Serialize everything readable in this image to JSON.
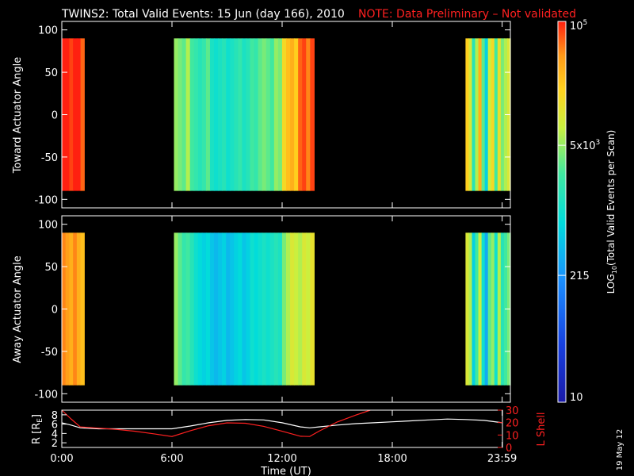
{
  "header": {
    "title": "TWINS2: Total Valid Events: 15 Jun (day 166), 2010",
    "note": "NOTE: Data Preliminary – Not validated"
  },
  "colors": {
    "background": "#000000",
    "axes": "#ffffff",
    "note": "#ff2020",
    "r_line": "#ffffff",
    "lshell_line": "#ff2020"
  },
  "colorbar": {
    "label": "LOG10(Total Valid Events per Scan)",
    "label_main": "LOG",
    "label_sub": "10",
    "label_rest": "(Total Valid Events per Scan)",
    "scale": "log",
    "min": 10,
    "max": 100000,
    "ticks": [
      {
        "value": 10,
        "label": "10"
      },
      {
        "value": 215,
        "label": "215"
      },
      {
        "value": 5000,
        "label": "5x10",
        "exp": "3"
      },
      {
        "value": 100000,
        "label": "10",
        "exp": "5"
      }
    ]
  },
  "footer": {
    "xlabel": "Time (UT)",
    "date_stamp": "19 May 12"
  },
  "chart_data": [
    {
      "type": "heatmap",
      "name": "toward",
      "ylabel": "Toward Actuator Angle",
      "xlim": [
        0,
        24
      ],
      "ylim": [
        -110,
        110
      ],
      "yticks": [
        100,
        50,
        0,
        -50,
        -100
      ],
      "angle_range": [
        -90,
        90
      ],
      "segments": [
        {
          "start": 0.0,
          "end": 1.2,
          "profile": [
            5.0,
            5.1,
            4.9,
            5.2,
            5.0,
            4.8
          ]
        },
        {
          "start": 6.0,
          "end": 13.5,
          "profile": [
            3.7,
            3.6,
            3.5,
            3.8,
            3.4,
            3.3,
            3.2,
            3.3,
            3.5,
            3.1,
            3.0,
            3.1,
            3.2,
            3.0,
            3.1,
            3.2,
            3.3,
            3.1,
            3.2,
            3.4,
            3.3,
            3.5,
            3.6,
            3.5,
            3.4,
            3.7,
            3.6,
            4.2,
            4.4,
            4.5,
            4.3,
            4.8,
            4.9,
            4.7,
            4.9
          ]
        },
        {
          "start": 21.6,
          "end": 24.0,
          "profile": [
            4.3,
            4.0,
            3.2,
            3.8,
            4.5,
            3.5,
            2.8,
            3.9,
            4.2,
            3.4,
            4.1,
            3.6,
            3.8,
            4.0
          ]
        }
      ]
    },
    {
      "type": "heatmap",
      "name": "away",
      "ylabel": "Away Actuator Angle",
      "xlim": [
        0,
        24
      ],
      "ylim": [
        -110,
        110
      ],
      "yticks": [
        100,
        50,
        0,
        -50,
        -100
      ],
      "angle_range": [
        -90,
        90
      ],
      "segments": [
        {
          "start": 0.0,
          "end": 1.2,
          "profile": [
            4.7,
            4.6,
            4.5,
            4.7,
            4.5,
            4.4
          ]
        },
        {
          "start": 6.0,
          "end": 13.5,
          "profile": [
            3.7,
            3.5,
            3.3,
            3.4,
            3.2,
            3.0,
            2.9,
            2.8,
            2.9,
            2.7,
            2.6,
            2.7,
            2.8,
            2.6,
            2.7,
            2.8,
            2.9,
            2.7,
            2.8,
            3.0,
            2.9,
            3.0,
            3.1,
            3.0,
            3.1,
            3.2,
            3.1,
            3.6,
            3.8,
            4.0,
            3.9,
            3.8,
            4.0,
            3.9,
            4.1
          ]
        },
        {
          "start": 21.6,
          "end": 24.0,
          "profile": [
            4.0,
            3.8,
            2.8,
            3.4,
            3.9,
            3.0,
            2.5,
            3.5,
            3.7,
            3.0,
            3.8,
            3.2,
            3.4,
            3.6
          ]
        }
      ]
    },
    {
      "type": "line",
      "name": "orbit",
      "xlabel": "Time (UT)",
      "xlim": [
        0,
        24
      ],
      "xticks": [
        0,
        6,
        12,
        18,
        23.983
      ],
      "xtick_labels": [
        "0:00",
        "6:00",
        "12:00",
        "18:00",
        "23:59"
      ],
      "ylabel": "R [RE]",
      "ylabel_main": "R [R",
      "ylabel_sub": "E",
      "ylabel_end": "]",
      "ylim": [
        1,
        9
      ],
      "yticks": [
        2,
        4,
        6,
        8
      ],
      "y2label": "L Shell",
      "y2lim": [
        0,
        30
      ],
      "y2ticks": [
        0,
        10,
        20,
        30
      ],
      "series": [
        {
          "name": "R",
          "axis": "left",
          "x": [
            0,
            0.5,
            1,
            2,
            3,
            4,
            5,
            6,
            7,
            8,
            9,
            10,
            11,
            12,
            13,
            13.5,
            14,
            15,
            16,
            17,
            18,
            19,
            20,
            21,
            22,
            23,
            24
          ],
          "y": [
            6.3,
            5.8,
            5.2,
            5.0,
            5.0,
            5.0,
            5.0,
            5.0,
            5.6,
            6.3,
            6.8,
            7.0,
            6.9,
            6.3,
            5.4,
            5.2,
            5.4,
            5.8,
            6.1,
            6.3,
            6.5,
            6.7,
            6.9,
            7.1,
            7.0,
            6.8,
            6.3
          ]
        },
        {
          "name": "L Shell",
          "axis": "right",
          "x": [
            0,
            0.5,
            1,
            2,
            3,
            4,
            5,
            6,
            7,
            8,
            9,
            10,
            11,
            12,
            13,
            13.5,
            14,
            15,
            16,
            16.8
          ],
          "y": [
            30,
            23,
            16.5,
            15.5,
            14.5,
            13,
            11,
            8.8,
            13.5,
            17.5,
            19.8,
            19.5,
            17,
            13,
            9,
            8.8,
            13,
            20.5,
            26,
            30
          ]
        }
      ]
    }
  ]
}
